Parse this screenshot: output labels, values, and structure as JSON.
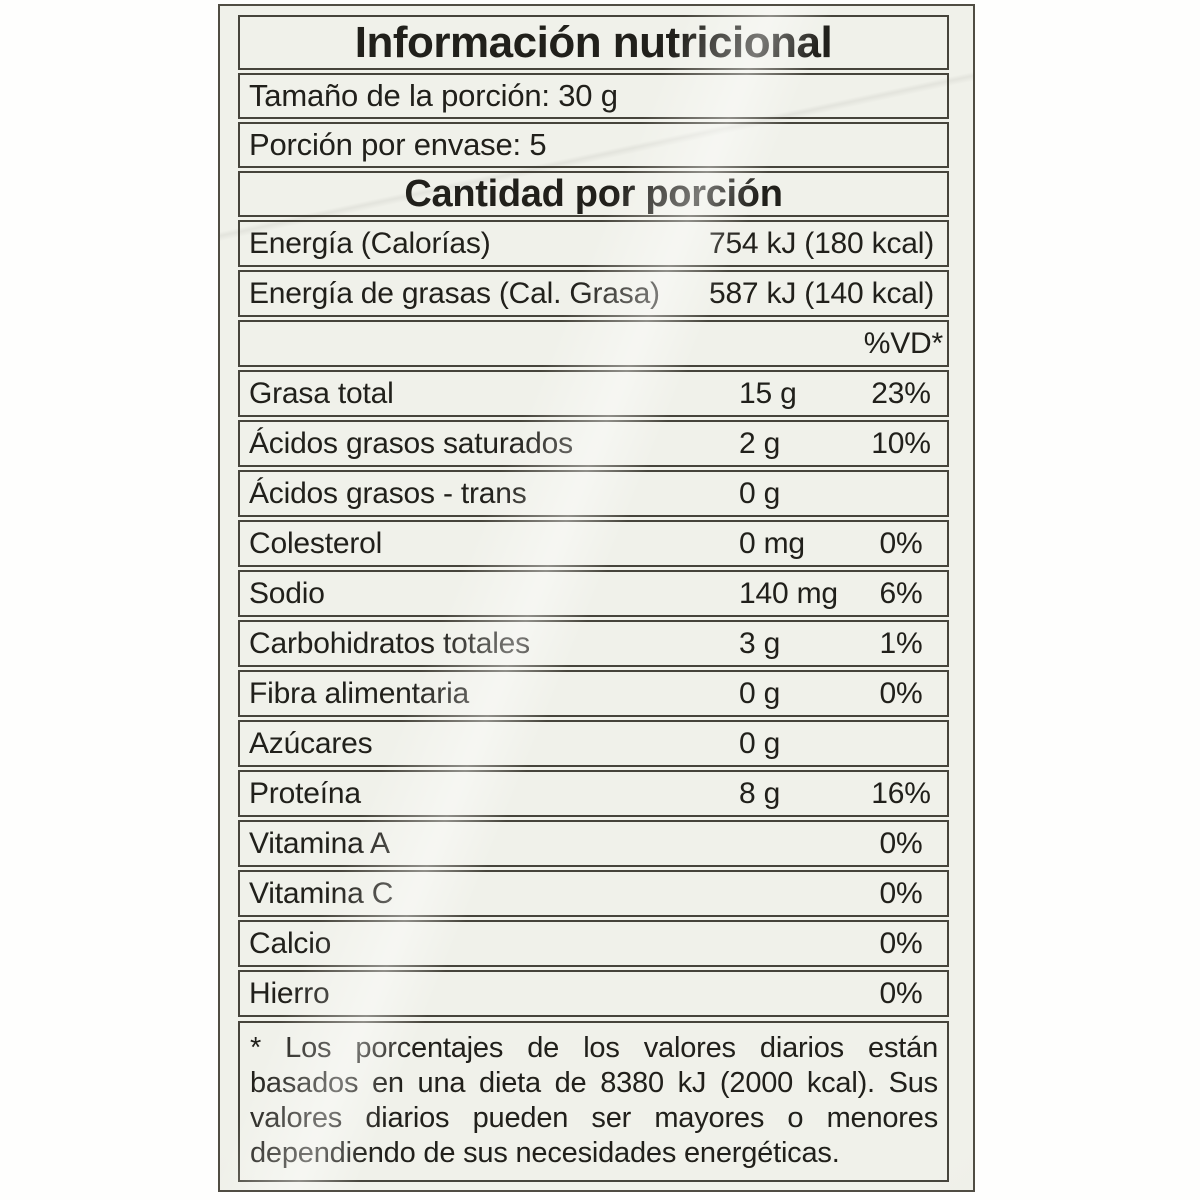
{
  "label": {
    "title": "Información nutricional",
    "serving_size": "Tamaño de la porción: 30 g",
    "servings_per_container": "Porción por envase: 5",
    "amount_per_serving_header": "Cantidad por porción",
    "energy_rows": [
      {
        "name": "Energía (Calorías)",
        "value": "754 kJ (180 kcal)"
      },
      {
        "name": "Energía de grasas (Cal. Grasa)",
        "value": "587 kJ (140 kcal)"
      }
    ],
    "daily_value_header": "%VD*",
    "nutrient_rows": [
      {
        "name": "Grasa total",
        "amount": "15 g",
        "dv": "23%"
      },
      {
        "name": "Ácidos grasos saturados",
        "amount": "2 g",
        "dv": "10%"
      },
      {
        "name": "Ácidos grasos - trans",
        "amount": "0 g",
        "dv": ""
      },
      {
        "name": "Colesterol",
        "amount": "0 mg",
        "dv": "0%"
      },
      {
        "name": "Sodio",
        "amount": "140 mg",
        "dv": "6%"
      },
      {
        "name": "Carbohidratos totales",
        "amount": "3 g",
        "dv": "1%"
      },
      {
        "name": "Fibra alimentaria",
        "amount": "0 g",
        "dv": "0%"
      },
      {
        "name": "Azúcares",
        "amount": "0 g",
        "dv": ""
      },
      {
        "name": "Proteína",
        "amount": "8 g",
        "dv": "16%"
      },
      {
        "name": "Vitamina A",
        "amount": "",
        "dv": "0%"
      },
      {
        "name": "Vitamina C",
        "amount": "",
        "dv": "0%"
      },
      {
        "name": "Calcio",
        "amount": "",
        "dv": "0%"
      },
      {
        "name": "Hierro",
        "amount": "",
        "dv": "0%"
      }
    ],
    "footnote_lines": [
      "* Los porcentajes de los valores diarios están",
      "basados en una dieta de 8380 kJ (2000 kcal). Sus",
      "valores diarios pueden ser mayores o menores",
      "dependiendo de sus necesidades energéticas."
    ],
    "colors": {
      "label_background": "#f0f1ea",
      "border": "#46443b",
      "text": "#21201b",
      "page_background": "#fefefd"
    }
  }
}
